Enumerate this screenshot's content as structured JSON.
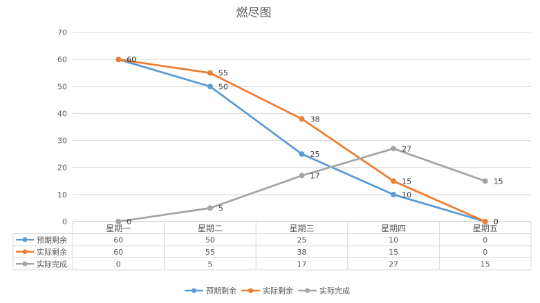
{
  "chart_data": {
    "type": "line",
    "title": "燃尽图",
    "categories": [
      "星期一",
      "星期二",
      "星期三",
      "星期四",
      "星期五"
    ],
    "ylim": [
      0,
      70
    ],
    "yticks": [
      0,
      10,
      20,
      30,
      40,
      50,
      60,
      70
    ],
    "grid": true,
    "legend_position": "bottom",
    "data_table": true,
    "series": [
      {
        "name": "预期剩余",
        "values": [
          60,
          50,
          25,
          10,
          0
        ],
        "color": "#5b9bd5"
      },
      {
        "name": "实际剩余",
        "values": [
          60,
          55,
          38,
          15,
          0
        ],
        "color": "#ed7d31"
      },
      {
        "name": "实际完成",
        "values": [
          0,
          5,
          17,
          27,
          15
        ],
        "color": "#a5a5a5"
      }
    ]
  }
}
